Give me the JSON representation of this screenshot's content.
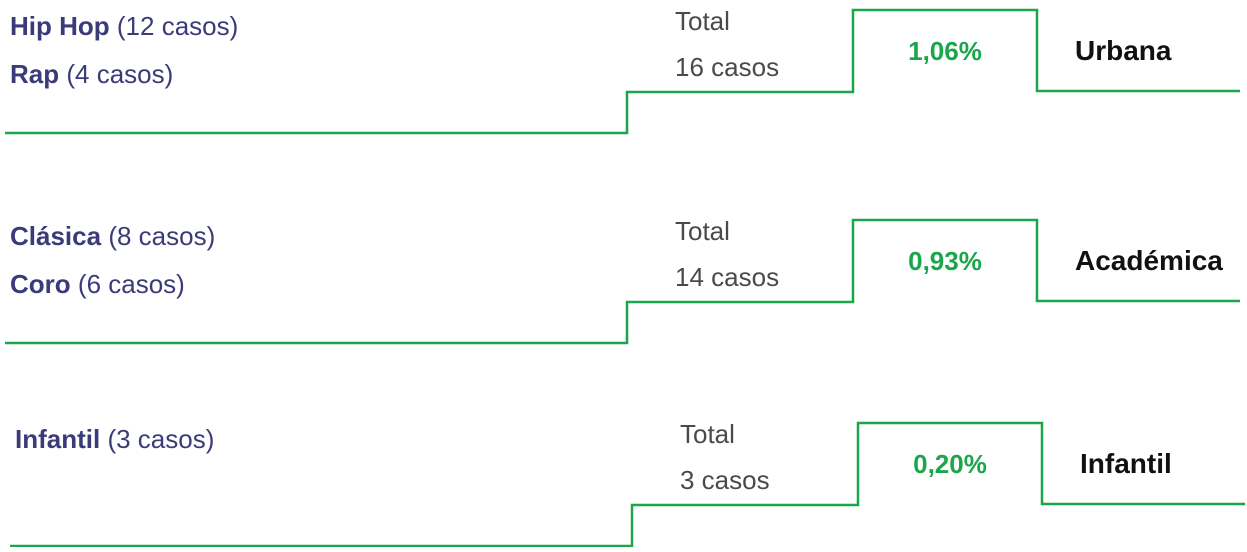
{
  "groups": [
    {
      "items": [
        {
          "name": "Hip Hop",
          "count": "(12 casos)"
        },
        {
          "name": "Rap",
          "count": "(4 casos)"
        }
      ],
      "total_label": "Total",
      "total": "16 casos",
      "percent": "1,06%",
      "category": "Urbana"
    },
    {
      "items": [
        {
          "name": "Clásica",
          "count": "(8 casos)"
        },
        {
          "name": "Coro",
          "count": "(6 casos)"
        }
      ],
      "total_label": "Total",
      "total": "14 casos",
      "percent": "0,93%",
      "category": "Académica"
    },
    {
      "items": [
        {
          "name": "Infantil",
          "count": "(3 casos)"
        }
      ],
      "total_label": "Total",
      "total": "3 casos",
      "percent": "0,20%",
      "category": "Infantil"
    }
  ]
}
